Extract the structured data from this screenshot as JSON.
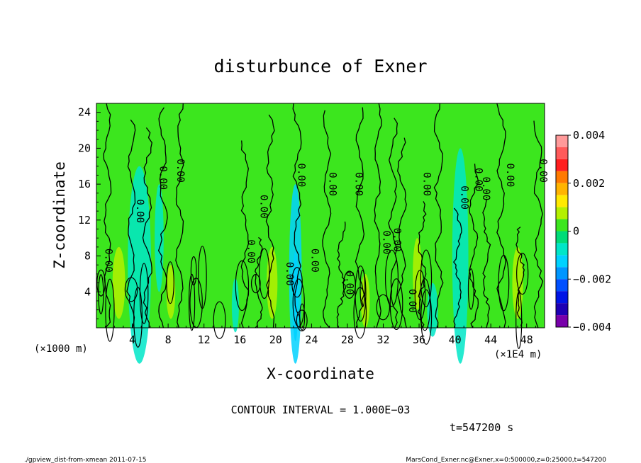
{
  "chart_data": {
    "type": "heatmap",
    "title": "disturbunce of Exner",
    "xlabel": "X-coordinate",
    "ylabel": "Z-coordinate",
    "x_unit_left": "(×1000 m)",
    "x_unit_right": "(×1E4 m)",
    "xlim": [
      0,
      50
    ],
    "ylim": [
      0,
      25
    ],
    "x_ticks": [
      4,
      8,
      12,
      16,
      20,
      24,
      28,
      32,
      36,
      40,
      44,
      48
    ],
    "y_ticks": [
      4,
      8,
      12,
      16,
      20,
      24
    ],
    "colorbar": {
      "ticks": [
        {
          "value": 0.004,
          "label": "0.004"
        },
        {
          "value": 0.002,
          "label": "0.002"
        },
        {
          "value": 0,
          "label": "0"
        },
        {
          "value": -0.002,
          "label": "−0.002"
        },
        {
          "value": -0.004,
          "label": "−0.004"
        }
      ],
      "levels": [
        {
          "from": 0.0035,
          "to": 0.004,
          "color": "#ff9a9a"
        },
        {
          "from": 0.003,
          "to": 0.0035,
          "color": "#ff5a5a"
        },
        {
          "from": 0.0025,
          "to": 0.003,
          "color": "#ff1e1e"
        },
        {
          "from": 0.002,
          "to": 0.0025,
          "color": "#ff7a00"
        },
        {
          "from": 0.0015,
          "to": 0.002,
          "color": "#ffb400"
        },
        {
          "from": 0.001,
          "to": 0.0015,
          "color": "#ffea00"
        },
        {
          "from": 0.0005,
          "to": 0.001,
          "color": "#b4f000"
        },
        {
          "from": 0,
          "to": 0.0005,
          "color": "#3ce61e"
        },
        {
          "from": -0.0005,
          "to": 0,
          "color": "#00dc78"
        },
        {
          "from": -0.001,
          "to": -0.0005,
          "color": "#00e6c8"
        },
        {
          "from": -0.0015,
          "to": -0.001,
          "color": "#00d2ff"
        },
        {
          "from": -0.002,
          "to": -0.0015,
          "color": "#0096ff"
        },
        {
          "from": -0.0025,
          "to": -0.002,
          "color": "#0050ff"
        },
        {
          "from": -0.003,
          "to": -0.0025,
          "color": "#0014e6"
        },
        {
          "from": -0.0035,
          "to": -0.003,
          "color": "#1e00b4"
        },
        {
          "from": -0.004,
          "to": -0.0035,
          "color": "#7800aa"
        }
      ]
    },
    "contour_label": "0.00",
    "contour_label_positions": [
      {
        "x": 1.0,
        "z": 7.5
      },
      {
        "x": 4.5,
        "z": 13.0
      },
      {
        "x": 7.1,
        "z": 16.7
      },
      {
        "x": 9.0,
        "z": 17.5
      },
      {
        "x": 16.9,
        "z": 8.5
      },
      {
        "x": 18.3,
        "z": 13.5
      },
      {
        "x": 21.2,
        "z": 6.0
      },
      {
        "x": 22.5,
        "z": 17.0
      },
      {
        "x": 24.0,
        "z": 7.5
      },
      {
        "x": 26.0,
        "z": 16.0
      },
      {
        "x": 27.9,
        "z": 5.0
      },
      {
        "x": 28.9,
        "z": 16.0
      },
      {
        "x": 32.0,
        "z": 9.5
      },
      {
        "x": 33.2,
        "z": 9.8
      },
      {
        "x": 34.9,
        "z": 3.0
      },
      {
        "x": 36.5,
        "z": 16.0
      },
      {
        "x": 40.7,
        "z": 14.5
      },
      {
        "x": 42.3,
        "z": 16.5
      },
      {
        "x": 43.1,
        "z": 15.5
      },
      {
        "x": 45.8,
        "z": 17.0
      },
      {
        "x": 49.5,
        "z": 17.5
      }
    ],
    "fill_features": [
      {
        "x": 4.8,
        "z": 7,
        "hw": 1.3,
        "hh": 11,
        "value": -0.0009
      },
      {
        "x": 22.2,
        "z": 6,
        "hw": 0.7,
        "hh": 10,
        "value": -0.0012
      },
      {
        "x": 40.6,
        "z": 8,
        "hw": 0.9,
        "hh": 12,
        "value": -0.0009
      },
      {
        "x": 7.0,
        "z": 10,
        "hw": 0.5,
        "hh": 6,
        "value": -0.0006
      },
      {
        "x": 15.5,
        "z": 2.5,
        "hw": 0.4,
        "hh": 3,
        "value": -0.0007
      },
      {
        "x": 37.5,
        "z": 2.0,
        "hw": 0.6,
        "hh": 3,
        "value": -0.0007
      },
      {
        "x": 2.5,
        "z": 5,
        "hw": 0.7,
        "hh": 4,
        "value": 0.0006
      },
      {
        "x": 8.3,
        "z": 4,
        "hw": 0.5,
        "hh": 3,
        "value": 0.0006
      },
      {
        "x": 19.6,
        "z": 5,
        "hw": 0.6,
        "hh": 4,
        "value": 0.0006
      },
      {
        "x": 30.0,
        "z": 3,
        "hw": 0.5,
        "hh": 3,
        "value": 0.0006
      },
      {
        "x": 35.8,
        "z": 6,
        "hw": 0.5,
        "hh": 4,
        "value": 0.0006
      },
      {
        "x": 47.0,
        "z": 5,
        "hw": 0.6,
        "hh": 4,
        "value": 0.0006
      }
    ]
  },
  "annotation": "CONTOUR INTERVAL = 1.000E−03",
  "time_label": "t=547200 s",
  "footer_left": "./gpview_dist-from-xmean  2011-07-15",
  "footer_right": "MarsCond_Exner.nc@Exner,x=0:500000,z=0:25000,t=547200"
}
